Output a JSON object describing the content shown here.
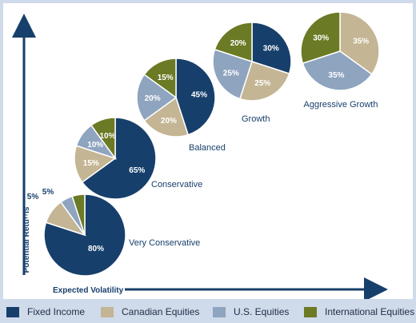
{
  "colors": {
    "fixed_income": "#173f6b",
    "canadian_equities": "#c4b594",
    "us_equities": "#8ea4bf",
    "international_equities": "#6b7a24",
    "axis": "#173f6b",
    "text": "#173f6b"
  },
  "chart_data": {
    "type": "pie",
    "title": "",
    "xlabel": "Expected Volatility",
    "ylabel": "Potential Returns",
    "legend": [
      "Fixed Income",
      "Canadian Equities",
      "U.S. Equities",
      "International Equities"
    ],
    "portfolios": [
      {
        "name": "Very Conservative",
        "slices": [
          {
            "category": "Fixed Income",
            "value": 80,
            "label": "80%"
          },
          {
            "category": "Canadian Equities",
            "value": 10,
            "label": "10%"
          },
          {
            "category": "U.S. Equities",
            "value": 5,
            "label": "5%"
          },
          {
            "category": "International Equities",
            "value": 5,
            "label": "5%"
          }
        ]
      },
      {
        "name": "Conservative",
        "slices": [
          {
            "category": "Fixed Income",
            "value": 65,
            "label": "65%"
          },
          {
            "category": "Canadian Equities",
            "value": 15,
            "label": "15%"
          },
          {
            "category": "U.S. Equities",
            "value": 10,
            "label": "10%"
          },
          {
            "category": "International Equities",
            "value": 10,
            "label": "10%"
          }
        ]
      },
      {
        "name": "Balanced",
        "slices": [
          {
            "category": "Fixed Income",
            "value": 45,
            "label": "45%"
          },
          {
            "category": "Canadian Equities",
            "value": 20,
            "label": "20%"
          },
          {
            "category": "U.S. Equities",
            "value": 20,
            "label": "20%"
          },
          {
            "category": "International Equities",
            "value": 15,
            "label": "15%"
          }
        ]
      },
      {
        "name": "Growth",
        "slices": [
          {
            "category": "Fixed Income",
            "value": 30,
            "label": "30%"
          },
          {
            "category": "Canadian Equities",
            "value": 25,
            "label": "25%"
          },
          {
            "category": "U.S. Equities",
            "value": 25,
            "label": "25%"
          },
          {
            "category": "International Equities",
            "value": 20,
            "label": "20%"
          }
        ]
      },
      {
        "name": "Aggressive Growth",
        "slices": [
          {
            "category": "Canadian Equities",
            "value": 35,
            "label": "35%"
          },
          {
            "category": "U.S. Equities",
            "value": 35,
            "label": "35%"
          },
          {
            "category": "International Equities",
            "value": 30,
            "label": "30%"
          }
        ]
      }
    ]
  }
}
